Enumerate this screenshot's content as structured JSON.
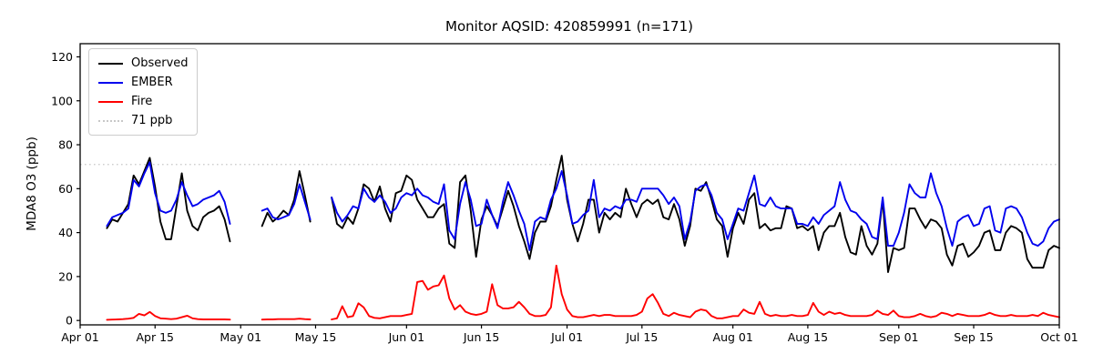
{
  "chart_data": {
    "type": "line",
    "title": "Monitor AQSID: 420859991 (n=171)",
    "ylabel": "MDA8 O3 (ppb)",
    "xlabel": "",
    "ylim": [
      -2,
      126
    ],
    "xlim_days": [
      0,
      183
    ],
    "grid": false,
    "legend_position": "upper left",
    "y_ticks": [
      0,
      20,
      40,
      60,
      80,
      100,
      120
    ],
    "x_ticks": [
      {
        "day": 0,
        "label": "Apr 01"
      },
      {
        "day": 14,
        "label": "Apr 15"
      },
      {
        "day": 30,
        "label": "May 01"
      },
      {
        "day": 44,
        "label": "May 15"
      },
      {
        "day": 61,
        "label": "Jun 01"
      },
      {
        "day": 75,
        "label": "Jun 15"
      },
      {
        "day": 91,
        "label": "Jul 01"
      },
      {
        "day": 105,
        "label": "Jul 15"
      },
      {
        "day": 122,
        "label": "Aug 01"
      },
      {
        "day": 136,
        "label": "Aug 15"
      },
      {
        "day": 153,
        "label": "Sep 01"
      },
      {
        "day": 167,
        "label": "Sep 15"
      },
      {
        "day": 183,
        "label": "Oct 01"
      }
    ],
    "x_start_day": 5,
    "x_start_date": "Apr 06",
    "threshold": {
      "label": "71 ppb",
      "value": 71,
      "color": "#c8c8c8",
      "style": "dotted"
    },
    "series": [
      {
        "name": "Observed",
        "color": "#000000",
        "values": [
          42,
          46,
          45,
          49,
          53,
          66,
          62,
          68,
          74,
          61,
          45,
          37,
          37,
          52,
          67,
          50,
          43,
          41,
          47,
          49,
          50,
          52,
          46,
          36,
          null,
          null,
          null,
          null,
          null,
          43,
          49,
          45,
          47,
          50,
          48,
          55,
          68,
          57,
          45,
          null,
          null,
          null,
          56,
          44,
          42,
          47,
          44,
          51,
          62,
          60,
          54,
          61,
          51,
          45,
          58,
          59,
          66,
          64,
          55,
          51,
          47,
          47,
          51,
          53,
          35,
          33,
          63,
          66,
          50,
          29,
          46,
          52,
          48,
          43,
          51,
          59,
          52,
          43,
          36,
          28,
          40,
          45,
          45,
          52,
          64,
          75,
          55,
          44,
          36,
          44,
          55,
          55,
          40,
          49,
          46,
          49,
          47,
          60,
          53,
          47,
          53,
          55,
          53,
          55,
          47,
          46,
          53,
          46,
          34,
          43,
          60,
          59,
          63,
          55,
          46,
          43,
          29,
          42,
          49,
          44,
          55,
          58,
          42,
          44,
          41,
          42,
          42,
          52,
          51,
          42,
          43,
          41,
          43,
          32,
          40,
          43,
          43,
          49,
          38,
          31,
          30,
          43,
          34,
          30,
          35,
          55,
          22,
          33,
          32,
          33,
          51,
          51,
          46,
          42,
          46,
          45,
          42,
          30,
          25,
          34,
          35,
          29,
          31,
          34,
          40,
          41,
          32,
          32,
          40,
          43,
          42,
          40,
          28,
          24,
          24,
          24,
          32,
          34,
          33
        ]
      },
      {
        "name": "EMBER",
        "color": "#0000ee",
        "values": [
          43,
          47,
          48,
          49,
          51,
          64,
          61,
          67,
          72,
          58,
          50,
          49,
          50,
          55,
          63,
          57,
          52,
          53,
          55,
          56,
          57,
          59,
          54,
          44,
          null,
          null,
          null,
          null,
          null,
          50,
          51,
          47,
          46,
          47,
          48,
          53,
          62,
          54,
          46,
          null,
          null,
          null,
          56,
          49,
          45,
          48,
          52,
          51,
          60,
          56,
          54,
          57,
          54,
          49,
          51,
          56,
          58,
          57,
          60,
          57,
          56,
          54,
          53,
          62,
          41,
          37,
          53,
          63,
          55,
          43,
          44,
          55,
          48,
          42,
          54,
          63,
          57,
          50,
          44,
          32,
          45,
          47,
          46,
          55,
          60,
          68,
          57,
          44,
          45,
          48,
          50,
          64,
          47,
          51,
          50,
          52,
          51,
          55,
          55,
          54,
          60,
          60,
          60,
          60,
          57,
          53,
          56,
          52,
          37,
          45,
          59,
          61,
          62,
          57,
          49,
          46,
          37,
          44,
          51,
          50,
          58,
          66,
          53,
          52,
          56,
          52,
          51,
          51,
          51,
          44,
          44,
          43,
          47,
          44,
          48,
          50,
          52,
          63,
          55,
          50,
          49,
          46,
          44,
          38,
          37,
          56,
          34,
          34,
          40,
          49,
          62,
          58,
          56,
          56,
          67,
          58,
          52,
          42,
          34,
          45,
          47,
          48,
          43,
          44,
          51,
          52,
          41,
          40,
          51,
          52,
          51,
          47,
          40,
          35,
          34,
          36,
          42,
          45,
          46
        ]
      },
      {
        "name": "Fire",
        "color": "#ff0000",
        "values": [
          0.3,
          0.4,
          0.5,
          0.6,
          0.8,
          1.2,
          3.0,
          2.3,
          3.9,
          2.0,
          1.0,
          0.8,
          0.6,
          0.8,
          1.5,
          2.2,
          1.0,
          0.6,
          0.5,
          0.5,
          0.5,
          0.5,
          0.5,
          0.4,
          null,
          null,
          null,
          null,
          null,
          0.4,
          0.5,
          0.5,
          0.6,
          0.6,
          0.6,
          0.6,
          0.8,
          0.6,
          0.5,
          null,
          null,
          null,
          0.5,
          1.0,
          6.5,
          1.5,
          2.0,
          7.8,
          6.0,
          2.0,
          1.2,
          1.0,
          1.5,
          2.0,
          2.0,
          2.0,
          2.5,
          3.0,
          17.5,
          18.0,
          14.0,
          15.5,
          16.0,
          20.5,
          10.0,
          5.0,
          7.0,
          4.0,
          3.0,
          2.5,
          3.0,
          4.0,
          16.5,
          7.0,
          5.5,
          5.5,
          6.0,
          8.5,
          6.0,
          3.0,
          2.0,
          2.0,
          2.5,
          6.0,
          25.0,
          12.0,
          5.0,
          2.0,
          1.5,
          1.5,
          2.0,
          2.5,
          2.0,
          2.5,
          2.5,
          2.0,
          2.0,
          2.0,
          2.0,
          2.5,
          4.0,
          10.0,
          12.0,
          8.0,
          3.0,
          2.0,
          3.5,
          2.5,
          2.0,
          1.5,
          4.0,
          5.0,
          4.5,
          2.0,
          1.0,
          1.0,
          1.5,
          2.0,
          2.0,
          5.0,
          3.5,
          3.0,
          8.5,
          3.0,
          2.0,
          2.5,
          2.0,
          2.0,
          2.5,
          2.0,
          2.0,
          2.5,
          8.0,
          4.0,
          2.5,
          4.0,
          3.0,
          3.5,
          2.5,
          2.0,
          2.0,
          2.0,
          2.0,
          2.5,
          4.5,
          3.0,
          2.5,
          4.5,
          2.0,
          1.5,
          1.5,
          2.0,
          3.0,
          2.0,
          1.5,
          2.0,
          3.5,
          3.0,
          2.0,
          3.0,
          2.5,
          2.0,
          2.0,
          2.0,
          2.5,
          3.5,
          2.5,
          2.0,
          2.0,
          2.5,
          2.0,
          2.0,
          2.0,
          2.5,
          2.0,
          3.5,
          2.5,
          2.0,
          1.5
        ]
      }
    ]
  }
}
